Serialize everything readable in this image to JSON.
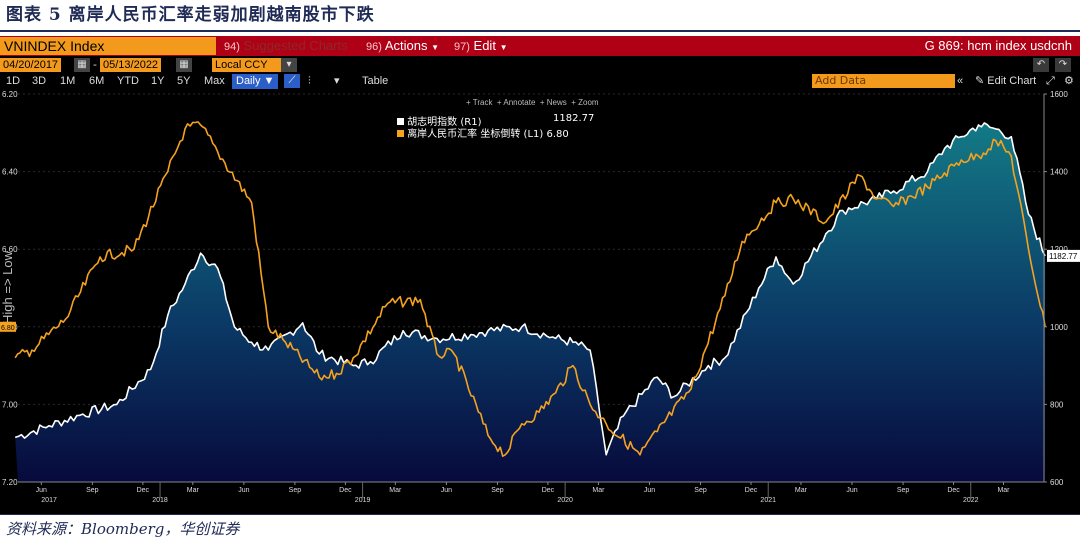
{
  "figure": {
    "title": "图表 5 离岸人民币汇率走弱加剧越南股市下跌",
    "source": "资料来源：Bloomberg，华创证券"
  },
  "toolbar": {
    "ticker": "VNINDEX Index",
    "suggested_num": "94)",
    "suggested": "Suggested Charts",
    "actions_num": "96)",
    "actions": "Actions",
    "edit_num": "97)",
    "edit": "Edit",
    "gcode": "G 869: hcm index usdcnh",
    "date_from": "04/20/2017",
    "date_to": "05/13/2022",
    "currency": "Local CCY",
    "periods": [
      "1D",
      "3D",
      "1M",
      "6M",
      "YTD",
      "1Y",
      "5Y",
      "Max"
    ],
    "frequency": "Daily",
    "table": "Table",
    "add_data": "Add Data",
    "edit_chart": "Edit Chart",
    "mini_tools": [
      "Track",
      "Annotate",
      "News",
      "Zoom"
    ]
  },
  "colors": {
    "title_navy": "#1f2a55",
    "bar_red": "#b00016",
    "bloomberg_orange": "#f39a1c",
    "vnindex_white": "#ffffff",
    "cnh_orange": "#f5a21e",
    "area_top": "#137a86",
    "area_bottom": "#070a3c"
  },
  "chart_data": {
    "type": "line",
    "left_axis_label": "High => Low",
    "left_ticks": [
      "6.20",
      "6.40",
      "6.60",
      "6.80",
      "7.00",
      "7.20"
    ],
    "left_ylim": [
      6.2,
      7.2
    ],
    "left_inverted": true,
    "right_ticks": [
      "1600",
      "1400",
      "1200",
      "1000",
      "800",
      "600"
    ],
    "right_ylim": [
      600,
      1600
    ],
    "month_ticks": [
      "Jun",
      "Sep",
      "Dec",
      "Mar",
      "Jun",
      "Sep",
      "Dec",
      "Mar",
      "Jun",
      "Sep",
      "Dec",
      "Mar",
      "Jun",
      "Sep",
      "Dec",
      "Mar",
      "Jun",
      "Sep",
      "Dec",
      "Mar"
    ],
    "year_ticks": [
      "2017",
      "2018",
      "2019",
      "2020",
      "2021",
      "2022"
    ],
    "legend": [
      {
        "name": "胡志明指数 (R1)",
        "value": "1182.77"
      },
      {
        "name": "离岸人民币汇率 坐标倒转 (L1)",
        "value": "6.80"
      }
    ],
    "last_left_label": "6.80",
    "last_right_label": "1182.77",
    "series": [
      {
        "name": "胡志明指数",
        "axis": "right",
        "x": [
          "2017-04",
          "2017-06",
          "2017-08",
          "2017-10",
          "2017-12",
          "2018-01",
          "2018-02",
          "2018-03",
          "2018-04",
          "2018-05",
          "2018-06",
          "2018-07",
          "2018-09",
          "2018-10",
          "2018-12",
          "2019-01",
          "2019-03",
          "2019-05",
          "2019-07",
          "2019-08",
          "2019-10",
          "2019-12",
          "2020-01",
          "2020-02",
          "2020-03",
          "2020-04",
          "2020-06",
          "2020-07",
          "2020-09",
          "2020-10",
          "2020-12",
          "2021-01",
          "2021-02",
          "2021-04",
          "2021-05",
          "2021-07",
          "2021-08",
          "2021-10",
          "2021-11",
          "2021-12",
          "2022-01",
          "2022-02",
          "2022-03",
          "2022-04",
          "2022-05"
        ],
        "values": [
          715,
          745,
          775,
          800,
          890,
          1030,
          1110,
          1190,
          1150,
          1000,
          960,
          940,
          1010,
          930,
          900,
          910,
          990,
          970,
          980,
          990,
          1000,
          970,
          960,
          940,
          670,
          770,
          870,
          820,
          900,
          920,
          1100,
          1180,
          1110,
          1240,
          1300,
          1330,
          1350,
          1400,
          1460,
          1490,
          1520,
          1510,
          1490,
          1290,
          1182.77
        ]
      },
      {
        "name": "离岸人民币汇率",
        "axis": "left_inverted",
        "x": [
          "2017-04",
          "2017-05",
          "2017-07",
          "2017-09",
          "2017-11",
          "2018-01",
          "2018-02",
          "2018-03",
          "2018-04",
          "2018-06",
          "2018-07",
          "2018-08",
          "2018-10",
          "2018-11",
          "2018-12",
          "2019-02",
          "2019-04",
          "2019-05",
          "2019-06",
          "2019-08",
          "2019-09",
          "2019-10",
          "2019-11",
          "2019-12",
          "2020-01",
          "2020-02",
          "2020-03",
          "2020-05",
          "2020-06",
          "2020-08",
          "2020-10",
          "2020-11",
          "2021-01",
          "2021-02",
          "2021-04",
          "2021-06",
          "2021-07",
          "2021-08",
          "2021-10",
          "2021-12",
          "2022-01",
          "2022-02",
          "2022-03",
          "2022-04",
          "2022-05"
        ],
        "values": [
          6.88,
          6.86,
          6.78,
          6.62,
          6.6,
          6.4,
          6.29,
          6.28,
          6.35,
          6.48,
          6.8,
          6.84,
          6.93,
          6.92,
          6.88,
          6.74,
          6.73,
          6.87,
          6.87,
          7.08,
          7.13,
          7.05,
          7.02,
          6.97,
          6.9,
          7.0,
          7.05,
          7.13,
          7.07,
          6.96,
          6.72,
          6.58,
          6.48,
          6.47,
          6.53,
          6.41,
          6.47,
          6.49,
          6.44,
          6.37,
          6.36,
          6.32,
          6.36,
          6.6,
          6.8
        ]
      }
    ]
  }
}
